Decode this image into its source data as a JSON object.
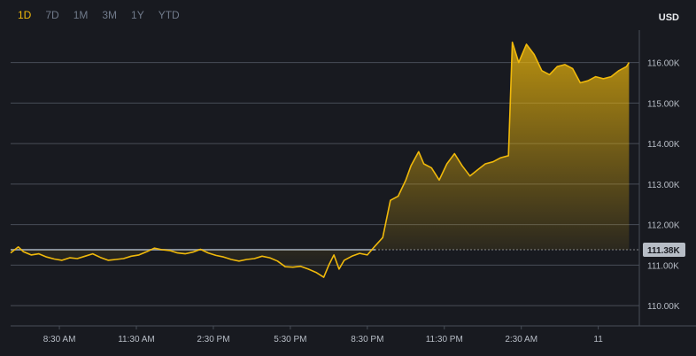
{
  "range_tabs": [
    {
      "label": "1D",
      "active": true
    },
    {
      "label": "7D",
      "active": false
    },
    {
      "label": "1M",
      "active": false
    },
    {
      "label": "3M",
      "active": false
    },
    {
      "label": "1Y",
      "active": false
    },
    {
      "label": "YTD",
      "active": false
    }
  ],
  "currency": "USD",
  "colors": {
    "accent": "#f0b90b",
    "background": "#181a20",
    "grid": "#474d57",
    "baseline": "#848e9c",
    "price_tag": "#b7bdc6"
  },
  "chart_data": {
    "type": "area",
    "title": "",
    "xlabel": "",
    "ylabel": "",
    "ylim": [
      109500,
      116800
    ],
    "y_ticks": [
      {
        "value": 110000,
        "label": "110.00K"
      },
      {
        "value": 111000,
        "label": "111.00K"
      },
      {
        "value": 112000,
        "label": "112.00K"
      },
      {
        "value": 113000,
        "label": "113.00K"
      },
      {
        "value": 114000,
        "label": "114.00K"
      },
      {
        "value": 115000,
        "label": "115.00K"
      },
      {
        "value": 116000,
        "label": "116.00K"
      }
    ],
    "x_ticks": [
      {
        "t": 1.9,
        "label": "8:30 AM"
      },
      {
        "t": 4.9,
        "label": "11:30 AM"
      },
      {
        "t": 7.9,
        "label": "2:30 PM"
      },
      {
        "t": 10.9,
        "label": "5:30 PM"
      },
      {
        "t": 13.9,
        "label": "8:30 PM"
      },
      {
        "t": 16.9,
        "label": "11:30 PM"
      },
      {
        "t": 19.9,
        "label": "2:30 AM"
      },
      {
        "t": 22.9,
        "label": "11"
      }
    ],
    "x_domain": [
      0,
      24.5
    ],
    "grid": true,
    "baseline_value": 111380,
    "current_price_label": "111.38K",
    "current_price_value": 111380,
    "series": [
      {
        "values": [
          [
            0.0,
            111300
          ],
          [
            0.3,
            111450
          ],
          [
            0.5,
            111330
          ],
          [
            0.8,
            111250
          ],
          [
            1.1,
            111280
          ],
          [
            1.4,
            111200
          ],
          [
            1.7,
            111150
          ],
          [
            2.0,
            111120
          ],
          [
            2.3,
            111180
          ],
          [
            2.6,
            111160
          ],
          [
            2.9,
            111220
          ],
          [
            3.2,
            111280
          ],
          [
            3.5,
            111190
          ],
          [
            3.8,
            111120
          ],
          [
            4.1,
            111140
          ],
          [
            4.4,
            111160
          ],
          [
            4.7,
            111220
          ],
          [
            5.0,
            111250
          ],
          [
            5.3,
            111330
          ],
          [
            5.6,
            111420
          ],
          [
            5.9,
            111380
          ],
          [
            6.2,
            111360
          ],
          [
            6.5,
            111300
          ],
          [
            6.8,
            111280
          ],
          [
            7.1,
            111320
          ],
          [
            7.4,
            111390
          ],
          [
            7.7,
            111300
          ],
          [
            8.0,
            111240
          ],
          [
            8.3,
            111200
          ],
          [
            8.6,
            111140
          ],
          [
            8.9,
            111100
          ],
          [
            9.2,
            111140
          ],
          [
            9.5,
            111160
          ],
          [
            9.8,
            111220
          ],
          [
            10.1,
            111180
          ],
          [
            10.4,
            111100
          ],
          [
            10.7,
            110960
          ],
          [
            11.0,
            110950
          ],
          [
            11.3,
            110970
          ],
          [
            11.6,
            110900
          ],
          [
            11.9,
            110820
          ],
          [
            12.2,
            110700
          ],
          [
            12.4,
            111000
          ],
          [
            12.6,
            111250
          ],
          [
            12.8,
            110900
          ],
          [
            13.0,
            111120
          ],
          [
            13.3,
            111220
          ],
          [
            13.6,
            111290
          ],
          [
            13.9,
            111250
          ],
          [
            14.2,
            111470
          ],
          [
            14.5,
            111680
          ],
          [
            14.8,
            112600
          ],
          [
            15.1,
            112700
          ],
          [
            15.4,
            113100
          ],
          [
            15.6,
            113450
          ],
          [
            15.9,
            113800
          ],
          [
            16.1,
            113500
          ],
          [
            16.4,
            113400
          ],
          [
            16.7,
            113100
          ],
          [
            17.0,
            113500
          ],
          [
            17.3,
            113750
          ],
          [
            17.6,
            113450
          ],
          [
            17.9,
            113200
          ],
          [
            18.2,
            113350
          ],
          [
            18.5,
            113500
          ],
          [
            18.8,
            113550
          ],
          [
            19.1,
            113650
          ],
          [
            19.4,
            113700
          ],
          [
            19.55,
            116500
          ],
          [
            19.8,
            116000
          ],
          [
            20.1,
            116450
          ],
          [
            20.4,
            116200
          ],
          [
            20.7,
            115800
          ],
          [
            21.0,
            115700
          ],
          [
            21.3,
            115900
          ],
          [
            21.6,
            115950
          ],
          [
            21.9,
            115850
          ],
          [
            22.2,
            115500
          ],
          [
            22.5,
            115550
          ],
          [
            22.8,
            115650
          ],
          [
            23.1,
            115600
          ],
          [
            23.4,
            115650
          ],
          [
            23.7,
            115800
          ],
          [
            24.0,
            115900
          ],
          [
            24.1,
            116000
          ]
        ]
      }
    ]
  }
}
